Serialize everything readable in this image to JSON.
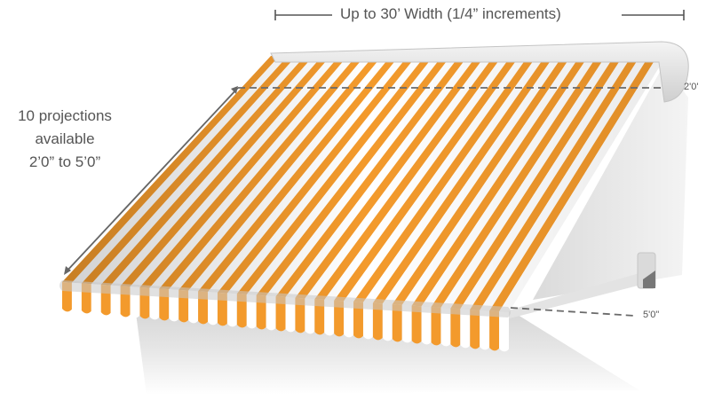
{
  "width_annotation": {
    "text": "Up to 30’ Width (1/4” increments)"
  },
  "projection_annotation": {
    "lines": [
      "10 projections",
      "available",
      "2’0” to 5’0”"
    ]
  },
  "dimension_labels": {
    "min_projection": "2'0'",
    "max_projection": "5'0\""
  },
  "colors": {
    "stripe_orange": "#f39a2c",
    "stripe_white": "#ffffff",
    "text_gray": "#555555",
    "line_gray": "#6a6a6a",
    "shadow_gray": "#e4e4e4",
    "hardware_gray": "#d9d9d9"
  },
  "icons": [
    "awning-illustration",
    "dimension-arrow",
    "dashed-leader-line"
  ]
}
